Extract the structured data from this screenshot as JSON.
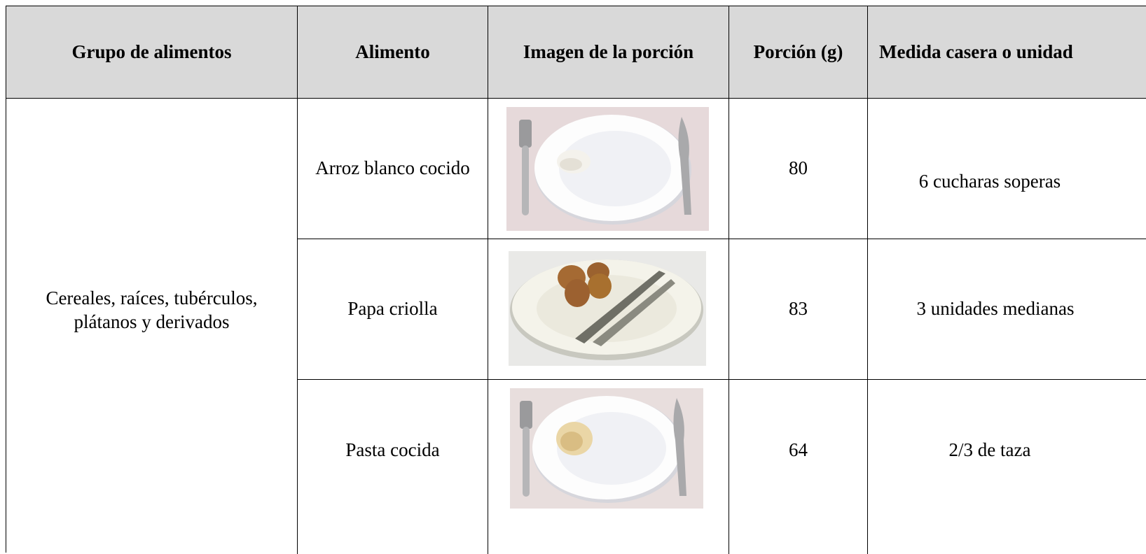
{
  "table": {
    "header": [
      "Grupo de alimentos",
      "Alimento",
      "Imagen de la porción",
      "Porción (g)",
      "Medida casera o unidad"
    ],
    "group": "Cereales, raíces, tubérculos, plátanos y derivados",
    "rows": [
      [
        "Arroz blanco cocido",
        80,
        "6 cucharas soperas"
      ],
      [
        "Papa criolla",
        83,
        "3 unidades medianas"
      ],
      [
        "Pasta cocida",
        64,
        "2/3 de taza"
      ]
    ]
  }
}
